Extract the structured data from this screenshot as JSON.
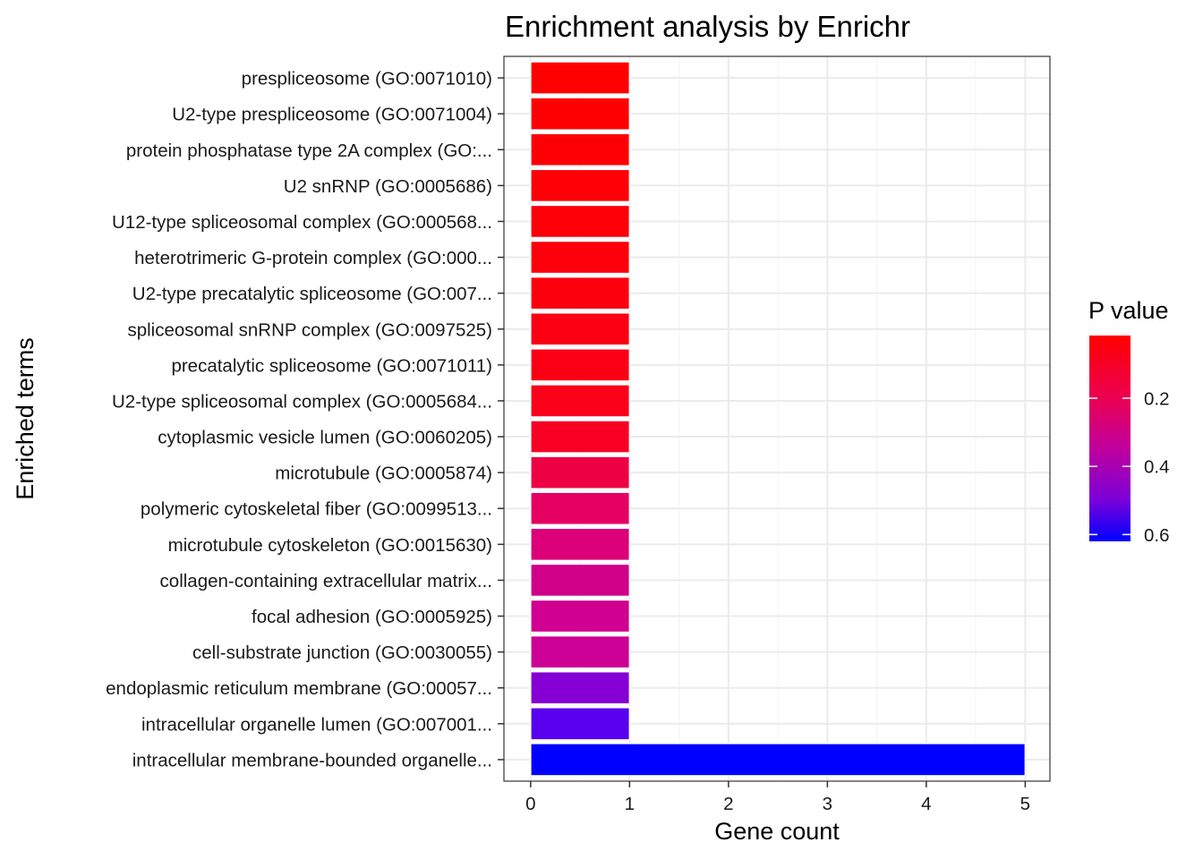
{
  "chart_data": {
    "type": "bar",
    "orientation": "horizontal",
    "title": "Enrichment analysis by Enrichr",
    "xlabel": "Gene count",
    "ylabel": "Enriched terms",
    "xlim": [
      -0.27,
      5.25
    ],
    "x_ticks": [
      0,
      1,
      2,
      3,
      4,
      5
    ],
    "x_tick_labels": [
      "0",
      "1",
      "2",
      "3",
      "4",
      "5"
    ],
    "grid": true,
    "legend": {
      "title": "P value",
      "position": "right",
      "ticks": [
        0.2,
        0.4,
        0.6
      ],
      "tick_labels": [
        "0.2",
        "0.4",
        "0.6"
      ],
      "range": [
        0.016,
        0.62
      ],
      "low_color": "#FF0000",
      "high_color": "#0000FF"
    },
    "categories": [
      "prespliceosome (GO:0071010)",
      "U2-type prespliceosome (GO:0071004)",
      "protein phosphatase type 2A complex (GO:...",
      "U2 snRNP (GO:0005686)",
      "U12-type spliceosomal complex (GO:000568...",
      "heterotrimeric G-protein complex (GO:000...",
      "U2-type precatalytic spliceosome (GO:007...",
      "spliceosomal snRNP complex (GO:0097525)",
      "precatalytic spliceosome (GO:0071011)",
      "U2-type spliceosomal complex (GO:0005684...",
      "cytoplasmic vesicle lumen (GO:0060205)",
      "microtubule (GO:0005874)",
      "polymeric cytoskeletal fiber (GO:0099513...",
      "microtubule cytoskeleton (GO:0015630)",
      "collagen-containing extracellular matrix...",
      "focal adhesion (GO:0005925)",
      "cell-substrate junction (GO:0030055)",
      "endoplasmic reticulum membrane (GO:00057...",
      "intracellular organelle lumen (GO:007001...",
      "intracellular membrane-bounded organelle..."
    ],
    "values": [
      1,
      1,
      1,
      1,
      1,
      1,
      1,
      1,
      1,
      1,
      1,
      1,
      1,
      1,
      1,
      1,
      1,
      1,
      1,
      5
    ],
    "colors": [
      "#FF0000",
      "#FE0002",
      "#FE0004",
      "#FE0005",
      "#FD0008",
      "#FD000B",
      "#FC000E",
      "#FB0012",
      "#FB0015",
      "#FA0019",
      "#F70024",
      "#EE0045",
      "#E60061",
      "#DC0079",
      "#D10089",
      "#D00090",
      "#CC0094",
      "#8500D4",
      "#5800EF",
      "#0000FF"
    ]
  }
}
